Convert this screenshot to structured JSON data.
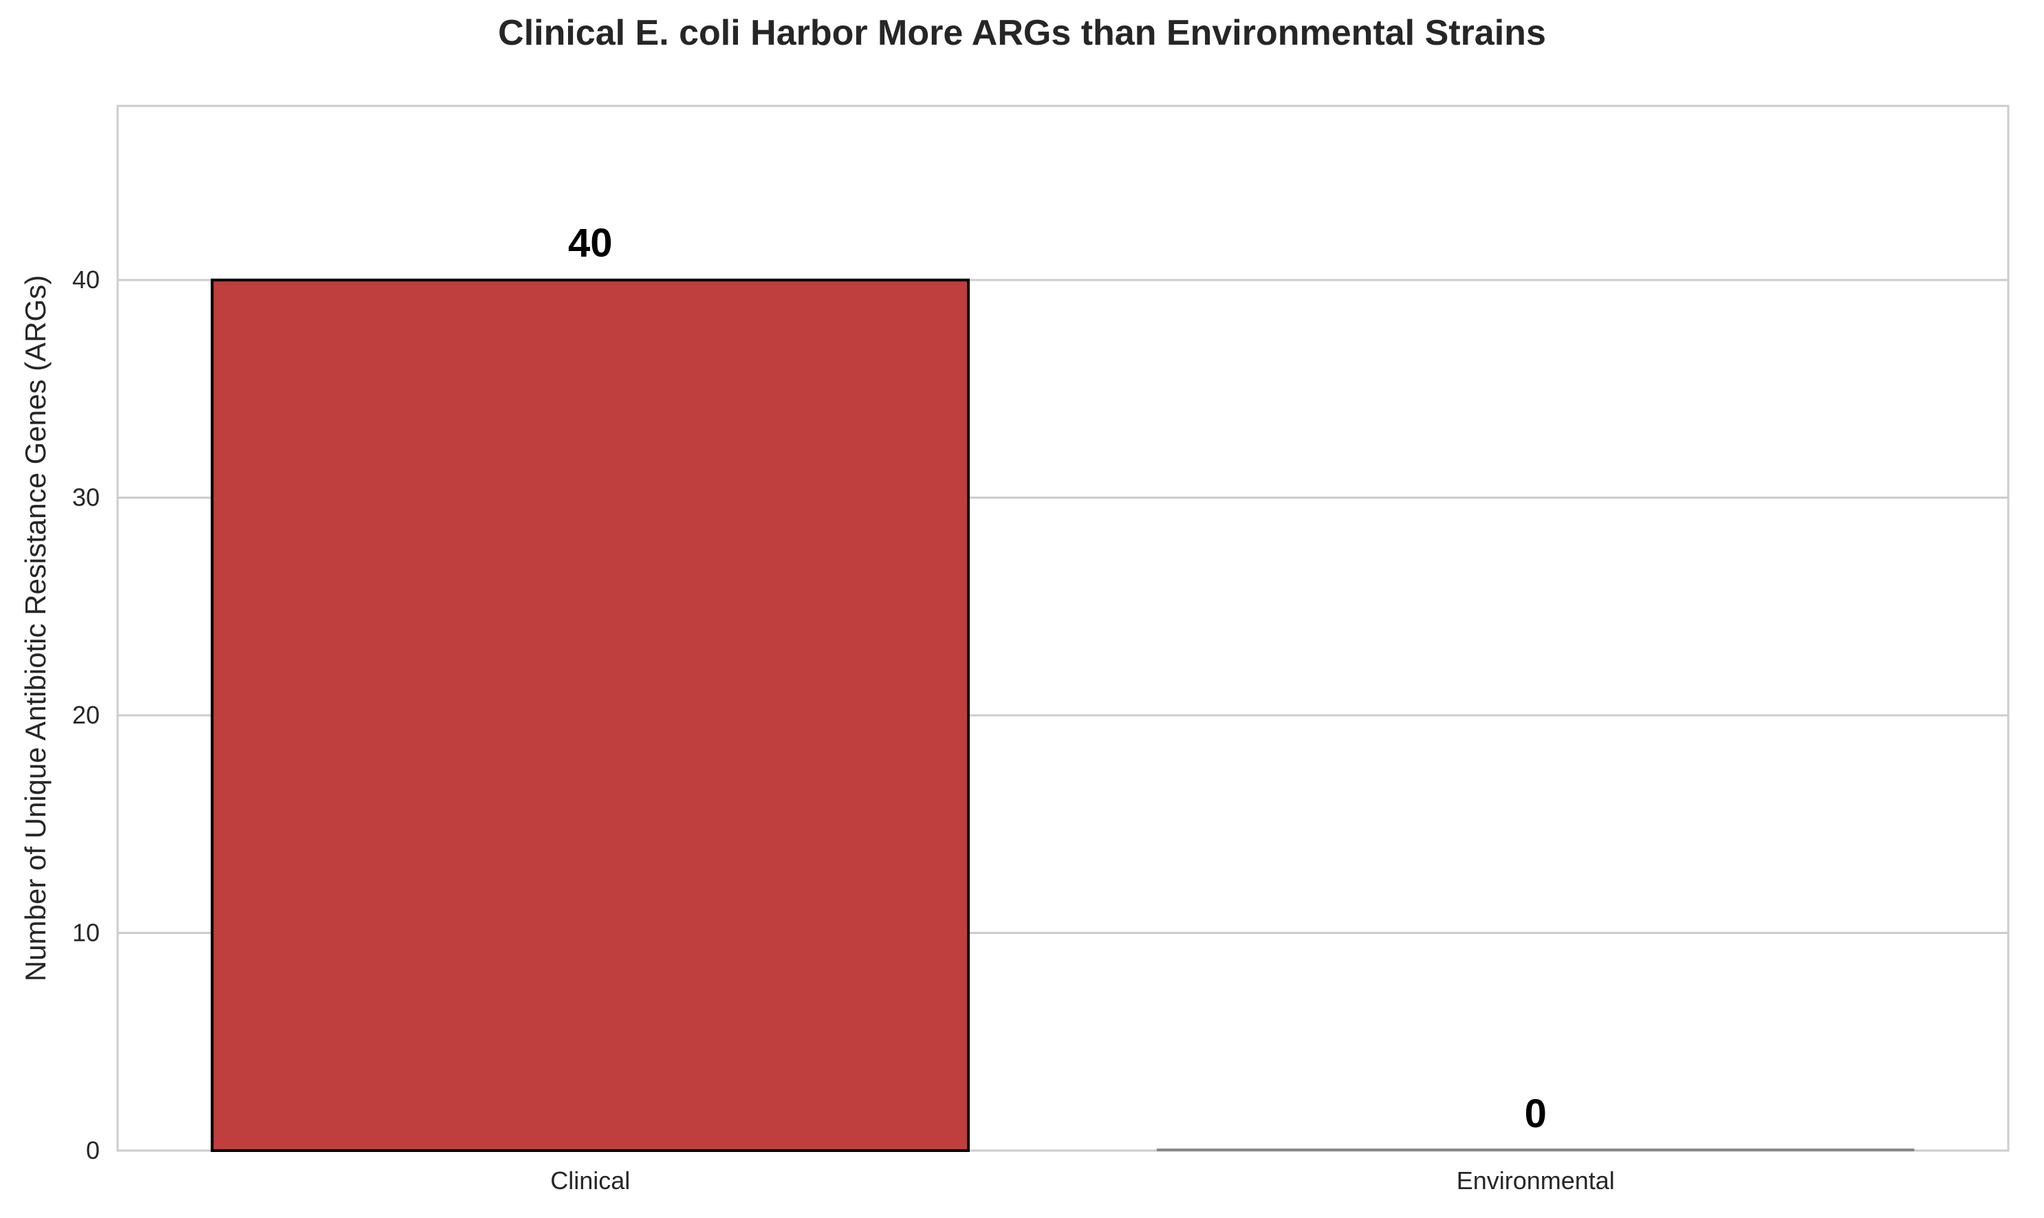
{
  "chart_data": {
    "type": "bar",
    "title": "Clinical E. coli Harbor More ARGs than Environmental Strains",
    "xlabel": "",
    "ylabel": "Number of Unique Antibiotic Resistance Genes (ARGs)",
    "categories": [
      "Clinical",
      "Environmental"
    ],
    "values": [
      40,
      0
    ],
    "data_labels": [
      "40",
      "0"
    ],
    "ylim": [
      0,
      48
    ],
    "yticks": [
      0,
      10,
      20,
      30,
      40
    ],
    "grid": true,
    "legend": "none",
    "colors": {
      "Clinical": "#bf3e3e",
      "Environmental": "#a0a0a0"
    },
    "bar_edge_colors": {
      "Clinical": "#000000",
      "Environmental": "#888888"
    }
  }
}
